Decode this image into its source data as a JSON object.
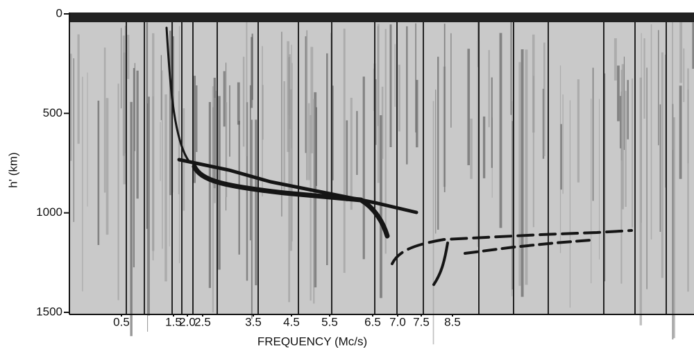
{
  "chart_data": {
    "type": "ionogram",
    "x_label": "FREQUENCY (Mc/s)",
    "y_label": "h' (km)",
    "ylim": [
      0,
      1500
    ],
    "yticks": [
      0,
      500,
      1000,
      1500
    ],
    "xticks": [
      0.5,
      1.5,
      {
        "value": 2,
        "label": "2.0"
      },
      2.5,
      3.5,
      4.5,
      5.5,
      6.5,
      {
        "value": 7,
        "label": "7.0"
      },
      7.5,
      8.5
    ]
  }
}
